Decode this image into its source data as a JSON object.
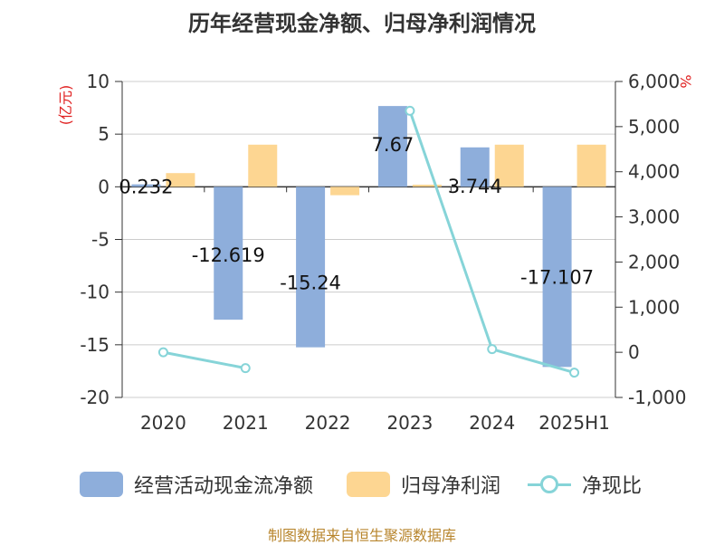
{
  "title": "历年经营现金净额、归母净利润情况",
  "source": "制图数据来自恒生聚源数据库",
  "colors": {
    "cash_flow": "#8eaedb",
    "net_profit": "#fdd692",
    "ratio": "#86d4d8",
    "left_unit": "#e02020",
    "right_unit": "#e02020"
  },
  "chart_data": {
    "type": "bar",
    "title": "历年经营现金净额、归母净利润情况",
    "categories": [
      "2020",
      "2021",
      "2022",
      "2023",
      "2024",
      "2025H1"
    ],
    "y_left": {
      "label": "(亿元)",
      "ylim": [
        -20,
        10
      ],
      "ticks": [
        "10",
        "5",
        "0",
        "-5",
        "-10",
        "-15",
        "-20"
      ]
    },
    "y_right": {
      "label": "%",
      "ylim": [
        -1000,
        6000
      ],
      "ticks": [
        "6,000",
        "5,000",
        "4,000",
        "3,000",
        "2,000",
        "1,000",
        "0",
        "-1,000"
      ]
    },
    "grid": true,
    "legend_position": "bottom",
    "series": [
      {
        "name": "经营活动现金流净额",
        "type": "bar",
        "axis": "left",
        "values": [
          0.232,
          -12.619,
          -15.24,
          7.67,
          3.744,
          -17.107
        ],
        "labels": [
          "0.232",
          "-12.619",
          "-15.24",
          "7.67",
          "3.744",
          "-17.107"
        ]
      },
      {
        "name": "归母净利润",
        "type": "bar",
        "axis": "left",
        "values": [
          1.3,
          4.0,
          -0.8,
          0.2,
          4.0,
          4.0
        ]
      },
      {
        "name": "净现比",
        "type": "line",
        "axis": "right",
        "values": [
          0,
          -350,
          null,
          5350,
          70,
          -450
        ]
      }
    ]
  }
}
